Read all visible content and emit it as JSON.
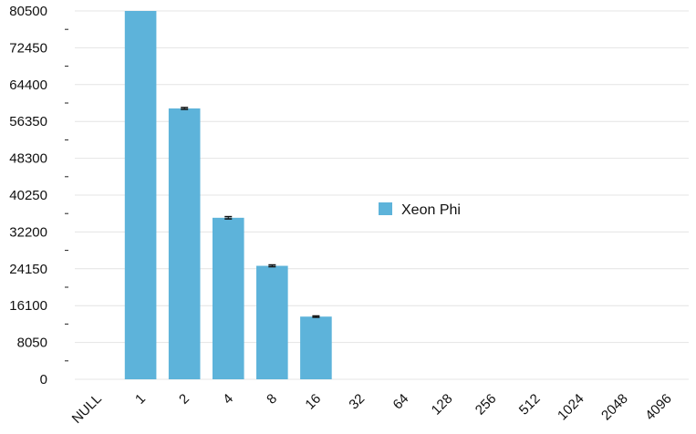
{
  "chart_data": {
    "type": "bar",
    "title": "",
    "xlabel": "",
    "ylabel": "",
    "categories": [
      "NULL",
      "1",
      "2",
      "4",
      "8",
      "16",
      "32",
      "64",
      "128",
      "256",
      "512",
      "1024",
      "2048",
      "4096"
    ],
    "series": [
      {
        "name": "Xeon Phi",
        "color": "#5db3da",
        "values": [
          0,
          80500,
          59200,
          35300,
          24800,
          13700,
          0,
          0,
          0,
          0,
          0,
          0,
          0,
          0
        ],
        "error": [
          0,
          0,
          200,
          250,
          200,
          150,
          0,
          0,
          0,
          0,
          0,
          0,
          0,
          0
        ]
      }
    ],
    "ylim": [
      0,
      80500
    ],
    "yticks": [
      "0",
      "8050",
      "16100",
      "24150",
      "32200",
      "40250",
      "48300",
      "56350",
      "64400",
      "72450",
      "80500"
    ],
    "grid": true,
    "legend_position": "center-right"
  }
}
